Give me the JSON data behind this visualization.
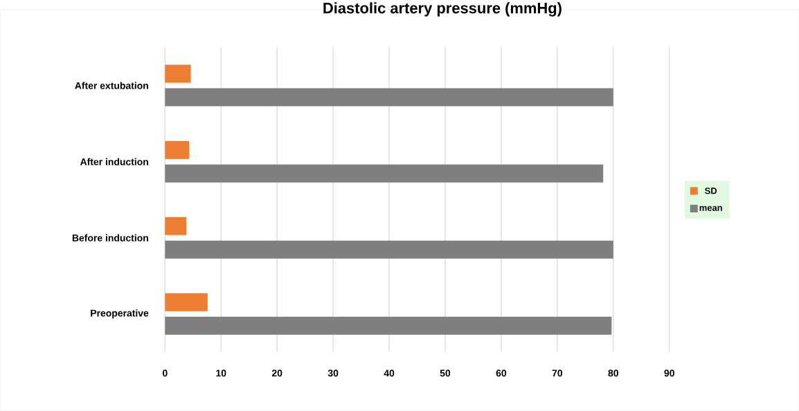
{
  "chart_data": {
    "type": "bar",
    "orientation": "horizontal",
    "title": "Diastolic artery pressure (mmHg)",
    "categories": [
      "After extubation",
      "After induction",
      "Before induction",
      "Preoperative"
    ],
    "series": [
      {
        "name": "SD",
        "color": "#ed7d31",
        "values": [
          4.6,
          4.3,
          3.8,
          7.6
        ]
      },
      {
        "name": "mean",
        "color": "#7f7f7f",
        "values": [
          80.0,
          78.2,
          80.0,
          79.7
        ]
      }
    ],
    "xlim": [
      0,
      90
    ],
    "xticks": [
      0,
      10,
      20,
      30,
      40,
      50,
      60,
      70,
      80,
      90
    ],
    "grid": "x",
    "legend": "right"
  }
}
